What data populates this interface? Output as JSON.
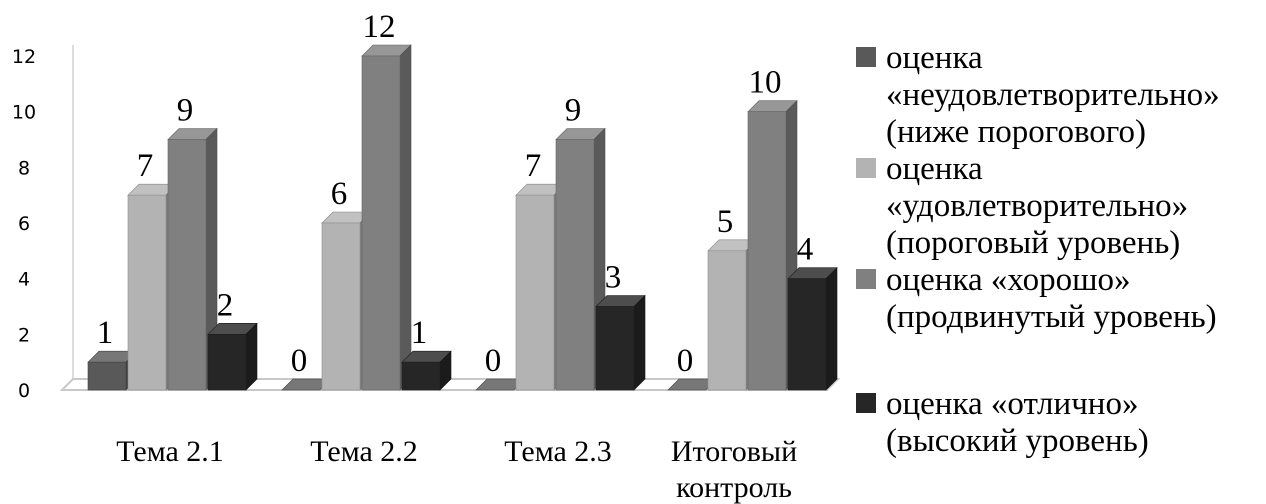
{
  "chart_data": {
    "type": "bar",
    "categories": [
      "Тема 2.1",
      "Тема 2.2",
      "Тема 2.3",
      "Итоговый контроль"
    ],
    "series": [
      {
        "name": "оценка «неудовлетворительно» (ниже порогового)",
        "values": [
          1,
          0,
          0,
          0
        ],
        "color": "#595959"
      },
      {
        "name": "оценка «удовлетворительно» (пороговый уровень)",
        "values": [
          7,
          6,
          7,
          5
        ],
        "color": "#b3b3b3"
      },
      {
        "name": "оценка «хорошо» (продвинутый уровень)",
        "values": [
          9,
          12,
          9,
          10
        ],
        "color": "#808080"
      },
      {
        "name": "оценка «отлично» (высокий уровень)",
        "values": [
          2,
          1,
          3,
          4
        ],
        "color": "#262626"
      }
    ],
    "yticks": [
      0,
      2,
      4,
      6,
      8,
      10,
      12
    ],
    "ylim": [
      0,
      12
    ],
    "title": "",
    "xlabel": "",
    "ylabel": "",
    "legend_position": "right",
    "style": "3d-column",
    "grid": false
  }
}
